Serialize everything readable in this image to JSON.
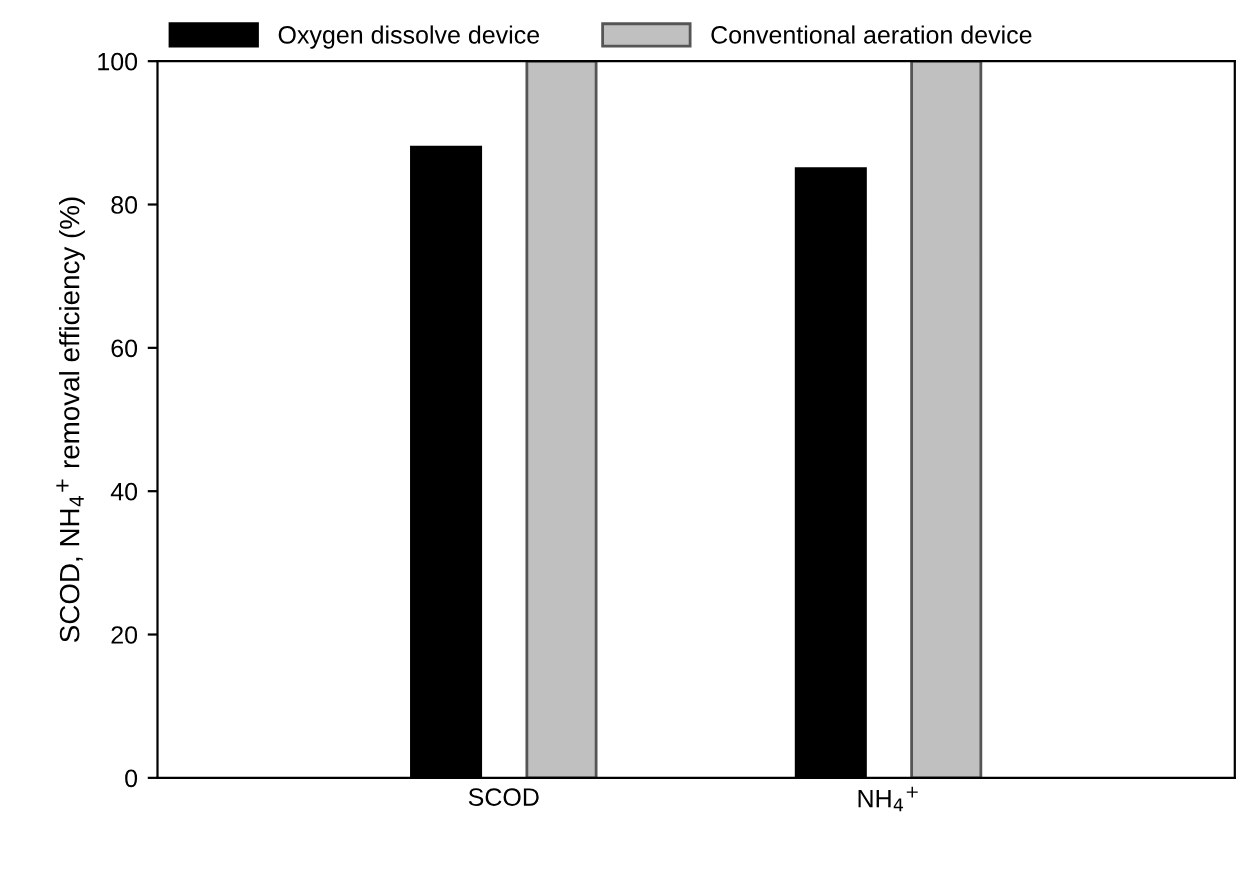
{
  "chart_data": {
    "type": "bar",
    "ylabel": "SCOD, NH$_{4}$$^{+}$ removal efficiency (%)",
    "categories": [
      "SCOD",
      "NH$_{4}$$^{+}$"
    ],
    "series": [
      {
        "name": "Oxygen dissolve device",
        "color": "#000000",
        "values": [
          88,
          85
        ]
      },
      {
        "name": "Conventional aeration device",
        "color": "#c0c0c0",
        "values": [
          100,
          100
        ]
      }
    ],
    "ylim": [
      0,
      100
    ],
    "yticks": [
      0,
      20,
      40,
      60,
      80,
      100
    ],
    "grid": false,
    "legend": "top"
  }
}
